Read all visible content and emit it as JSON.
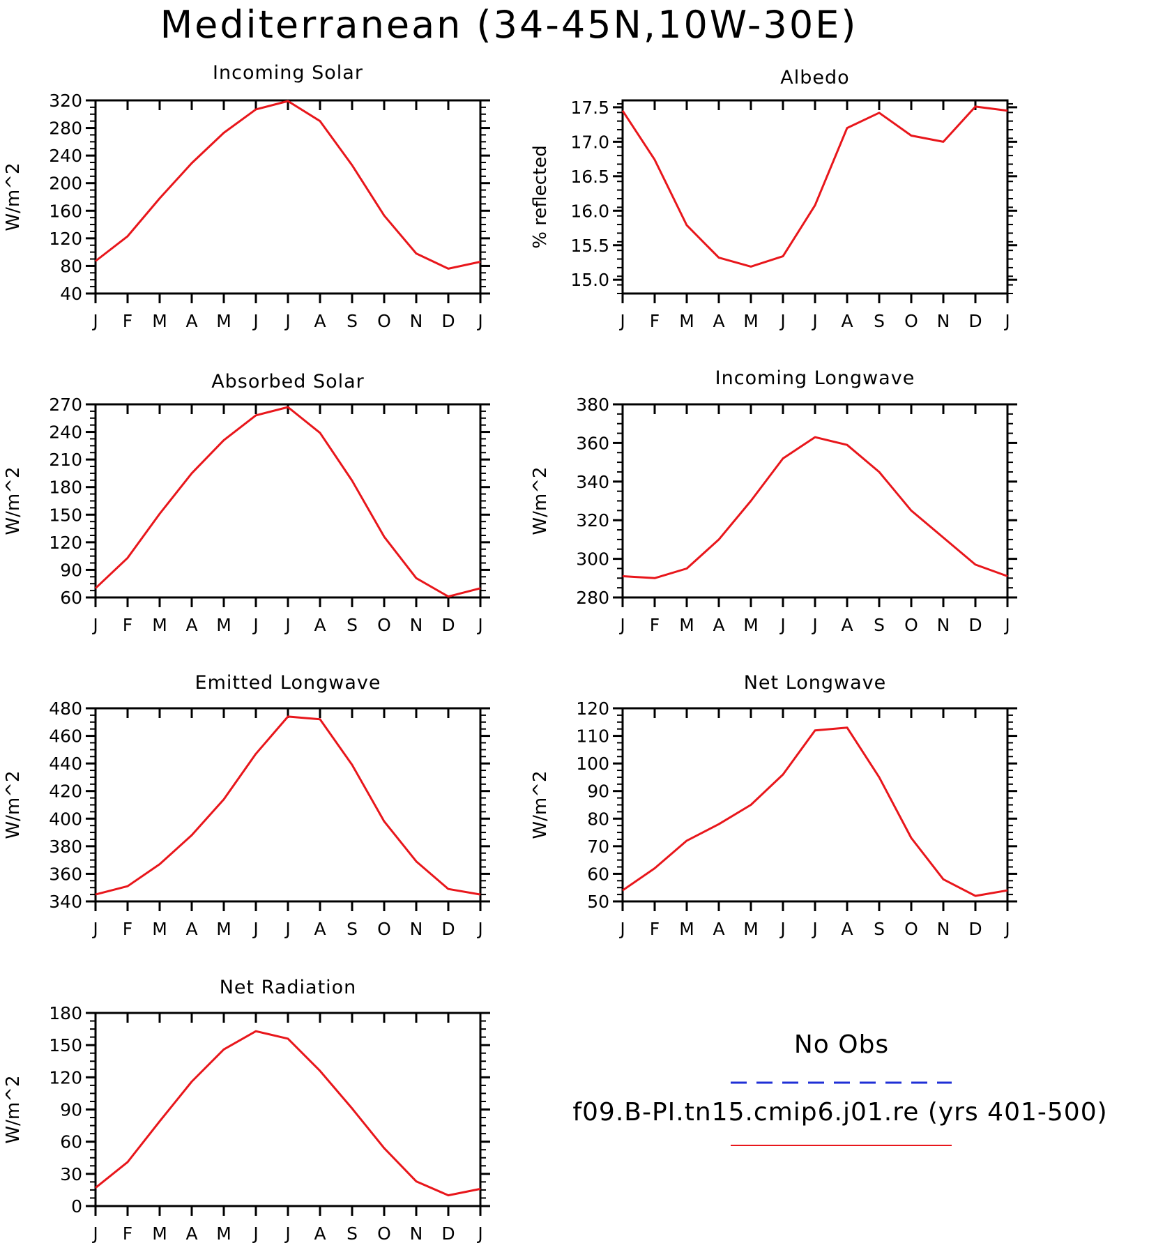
{
  "title": "Mediterranean (34-45N,10W-30E)",
  "legend": {
    "items": [
      {
        "label": "No Obs",
        "color": "#1f2fd6",
        "dash": true
      },
      {
        "label": "f09.B-PI.tn15.cmip6.j01.re (yrs 401-500)",
        "color": "#e8161b",
        "dash": false
      }
    ]
  },
  "chart_data": [
    {
      "type": "line",
      "title": "Incoming Solar",
      "ylabel": "W/m^2",
      "categories": [
        "J",
        "F",
        "M",
        "A",
        "M",
        "J",
        "J",
        "A",
        "S",
        "O",
        "N",
        "D",
        "J"
      ],
      "ylim": [
        40,
        320
      ],
      "yticks": [
        40,
        80,
        120,
        160,
        200,
        240,
        280,
        320
      ],
      "ytick_labels": [
        "40",
        "80",
        "120",
        "160",
        "200",
        "240",
        "280",
        "320"
      ],
      "series": [
        {
          "color": "#e8161b",
          "values": [
            87,
            123,
            178,
            229,
            273,
            307,
            319,
            290,
            226,
            153,
            98,
            76,
            86
          ]
        }
      ]
    },
    {
      "type": "line",
      "title": "Albedo",
      "ylabel": "% reflected",
      "categories": [
        "J",
        "F",
        "M",
        "A",
        "M",
        "J",
        "J",
        "A",
        "S",
        "O",
        "N",
        "D",
        "J"
      ],
      "ylim": [
        14.8,
        17.6
      ],
      "yticks": [
        15.0,
        15.5,
        16.0,
        16.5,
        17.0,
        17.5
      ],
      "ytick_labels": [
        "15.0",
        "15.5",
        "16.0",
        "16.5",
        "17.0",
        "17.5"
      ],
      "series": [
        {
          "color": "#e8161b",
          "values": [
            17.45,
            16.74,
            15.79,
            15.32,
            15.19,
            15.34,
            16.08,
            17.2,
            17.42,
            17.09,
            17.0,
            17.51,
            17.45
          ]
        }
      ]
    },
    {
      "type": "line",
      "title": "Absorbed Solar",
      "ylabel": "W/m^2",
      "categories": [
        "J",
        "F",
        "M",
        "A",
        "M",
        "J",
        "J",
        "A",
        "S",
        "O",
        "N",
        "D",
        "J"
      ],
      "ylim": [
        60,
        270
      ],
      "yticks": [
        60,
        90,
        120,
        150,
        180,
        210,
        240,
        270
      ],
      "ytick_labels": [
        "60",
        "90",
        "120",
        "150",
        "180",
        "210",
        "240",
        "270"
      ],
      "series": [
        {
          "color": "#e8161b",
          "values": [
            70,
            103,
            151,
            195,
            231,
            258,
            267,
            239,
            187,
            126,
            81,
            61,
            70
          ]
        }
      ]
    },
    {
      "type": "line",
      "title": "Incoming Longwave",
      "ylabel": "W/m^2",
      "categories": [
        "J",
        "F",
        "M",
        "A",
        "M",
        "J",
        "J",
        "A",
        "S",
        "O",
        "N",
        "D",
        "J"
      ],
      "ylim": [
        280,
        380
      ],
      "yticks": [
        280,
        300,
        320,
        340,
        360,
        380
      ],
      "ytick_labels": [
        "280",
        "300",
        "320",
        "340",
        "360",
        "380"
      ],
      "series": [
        {
          "color": "#e8161b",
          "values": [
            291,
            290,
            295,
            310,
            330,
            352,
            363,
            359,
            345,
            325,
            311,
            297,
            291
          ]
        }
      ]
    },
    {
      "type": "line",
      "title": "Emitted Longwave",
      "ylabel": "W/m^2",
      "categories": [
        "J",
        "F",
        "M",
        "A",
        "M",
        "J",
        "J",
        "A",
        "S",
        "O",
        "N",
        "D",
        "J"
      ],
      "ylim": [
        340,
        480
      ],
      "yticks": [
        340,
        360,
        380,
        400,
        420,
        440,
        460,
        480
      ],
      "ytick_labels": [
        "340",
        "360",
        "380",
        "400",
        "420",
        "440",
        "460",
        "480"
      ],
      "series": [
        {
          "color": "#e8161b",
          "values": [
            345,
            351,
            367,
            388,
            414,
            447,
            474,
            472,
            439,
            398,
            369,
            349,
            345
          ]
        }
      ]
    },
    {
      "type": "line",
      "title": "Net Longwave",
      "ylabel": "W/m^2",
      "categories": [
        "J",
        "F",
        "M",
        "A",
        "M",
        "J",
        "J",
        "A",
        "S",
        "O",
        "N",
        "D",
        "J"
      ],
      "ylim": [
        50,
        120
      ],
      "yticks": [
        50,
        60,
        70,
        80,
        90,
        100,
        110,
        120
      ],
      "ytick_labels": [
        "50",
        "60",
        "70",
        "80",
        "90",
        "100",
        "110",
        "120"
      ],
      "series": [
        {
          "color": "#e8161b",
          "values": [
            54,
            62,
            72,
            78,
            85,
            96,
            112,
            113,
            95,
            73,
            58,
            52,
            54
          ]
        }
      ]
    },
    {
      "type": "line",
      "title": "Net Radiation",
      "ylabel": "W/m^2",
      "categories": [
        "J",
        "F",
        "M",
        "A",
        "M",
        "J",
        "J",
        "A",
        "S",
        "O",
        "N",
        "D",
        "J"
      ],
      "ylim": [
        0,
        180
      ],
      "yticks": [
        0,
        30,
        60,
        90,
        120,
        150,
        180
      ],
      "ytick_labels": [
        "0",
        "30",
        "60",
        "90",
        "120",
        "150",
        "180"
      ],
      "series": [
        {
          "color": "#e8161b",
          "values": [
            17,
            41,
            79,
            116,
            146,
            163,
            156,
            126,
            91,
            54,
            23,
            10,
            16
          ]
        }
      ]
    }
  ]
}
